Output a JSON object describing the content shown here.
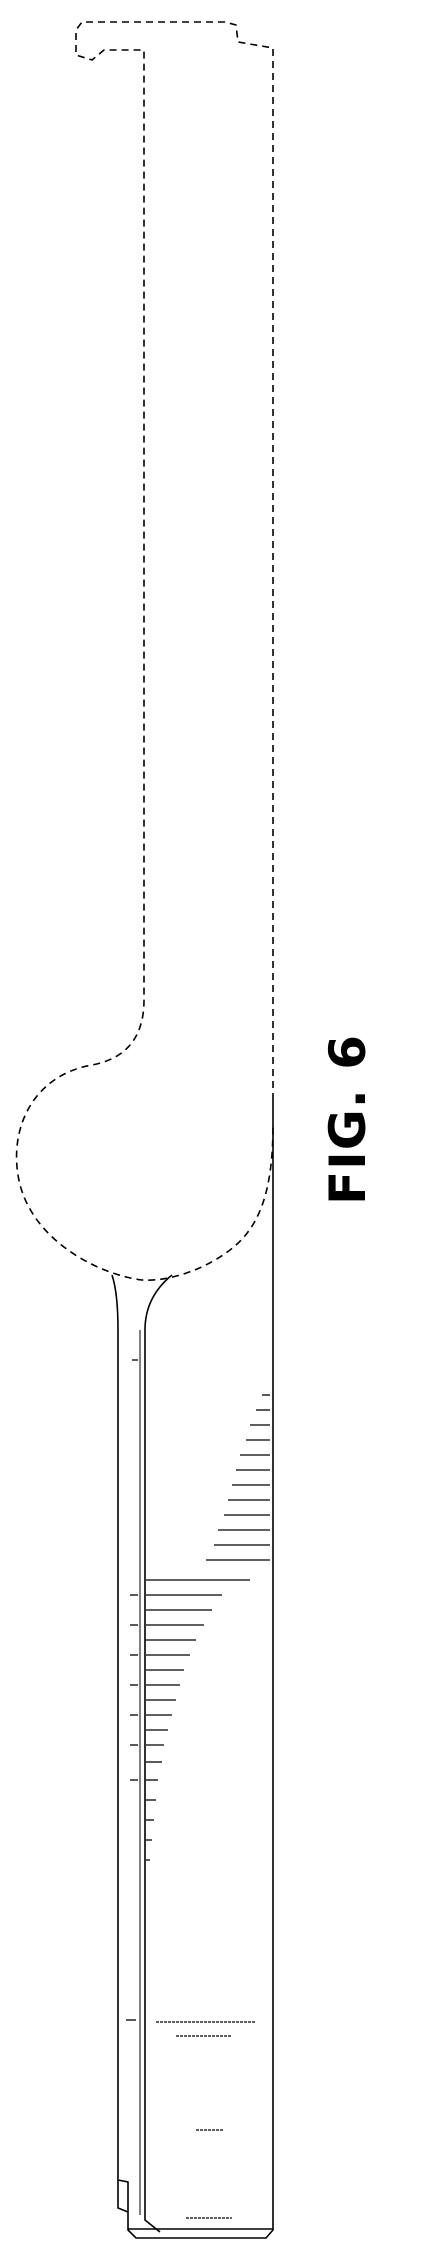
{
  "figure": {
    "label": "FIG. 6"
  },
  "drawing": {
    "stroke_color": "#000000",
    "background_color": "#ffffff"
  }
}
